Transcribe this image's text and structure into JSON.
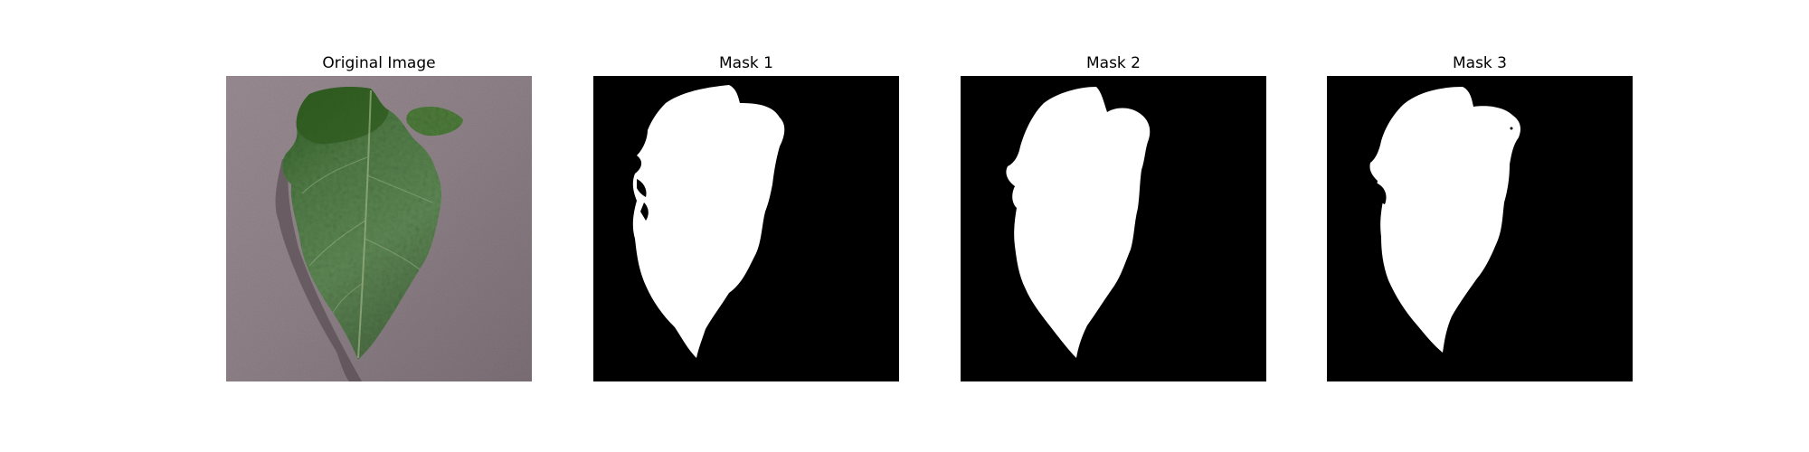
{
  "figure": {
    "panels": [
      {
        "title": "Original Image",
        "kind": "photo",
        "subject": "leaf-photo"
      },
      {
        "title": "Mask 1",
        "kind": "mask",
        "subject": "segmentation-mask-1"
      },
      {
        "title": "Mask 2",
        "kind": "mask",
        "subject": "segmentation-mask-2"
      },
      {
        "title": "Mask 3",
        "kind": "mask",
        "subject": "segmentation-mask-3"
      }
    ]
  },
  "colors": {
    "background": "#ffffff",
    "mask_foreground": "#ffffff",
    "mask_background": "#000000",
    "leaf_dark": "#2f5a22",
    "leaf_mid": "#5b8450",
    "leaf_light": "#8aa36e",
    "surface": "#8f8289"
  }
}
